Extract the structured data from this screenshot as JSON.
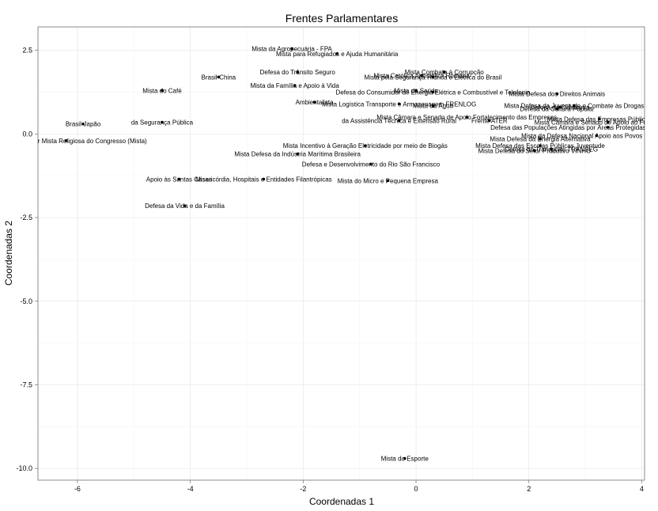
{
  "chart_data": {
    "type": "scatter",
    "title": "Frentes Parlamentares",
    "xlabel": "Coordenadas 1",
    "ylabel": "Coordenadas 2",
    "xlim": [
      -6.7,
      4.05
    ],
    "ylim": [
      -10.35,
      3.2
    ],
    "xticks": [
      -6,
      -4,
      -2,
      0,
      2,
      4
    ],
    "yticks": [
      2.5,
      0.0,
      -2.5,
      -5.0,
      -7.5,
      -10.0
    ],
    "ytick_labels": [
      "2.5",
      "0.0",
      "-2.5",
      "-5.0",
      "-7.5",
      "-10.0"
    ],
    "grid": true,
    "points": [
      {
        "x": -2.2,
        "y": 2.55,
        "label": "Mista da Agropecuária - FPA"
      },
      {
        "x": -1.4,
        "y": 2.4,
        "label": "Mista para Refugiados e Ajuda  Humanitária"
      },
      {
        "x": -3.5,
        "y": 1.7,
        "label": "Brasil-China"
      },
      {
        "x": -2.1,
        "y": 1.85,
        "label": "Defesa do Trânsito Seguro"
      },
      {
        "x": -2.15,
        "y": 1.45,
        "label": "Mista da Família e Apoio à Vida"
      },
      {
        "x": -4.5,
        "y": 1.3,
        "label": "Mista do Café"
      },
      {
        "x": 0.5,
        "y": 1.85,
        "label": "Mista  Combate à Corrupção"
      },
      {
        "x": 0.1,
        "y": 1.75,
        "label": "Mista Católica Apostólica Romana"
      },
      {
        "x": 0.3,
        "y": 1.7,
        "label": "Mista pela Segurança Hídrica e Elétrica do Brasil"
      },
      {
        "x": 0.0,
        "y": 1.3,
        "label": "Mista da Saúde"
      },
      {
        "x": 0.3,
        "y": 1.25,
        "label": "Defesa do Consumidor de Energia Elétrica e Combustível e Telefonia"
      },
      {
        "x": 2.5,
        "y": 1.2,
        "label": "Mista  Defesa dos Direitos Animais"
      },
      {
        "x": -1.8,
        "y": 0.95,
        "label": "Ambientalista"
      },
      {
        "x": -0.3,
        "y": 0.9,
        "label": "Mista  Logística  Transporte e Armazenagem  FRENLOG"
      },
      {
        "x": 0.3,
        "y": 0.85,
        "label": "Mista da Água"
      },
      {
        "x": 2.8,
        "y": 0.85,
        "label": "Mista  Defesa da Juventude e Combate às Drogas"
      },
      {
        "x": 2.5,
        "y": 0.75,
        "label": "Defesa da Cultura Popular"
      },
      {
        "x": 2.55,
        "y": 0.8,
        "label": "Defesa da Cidadania"
      },
      {
        "x": 0.9,
        "y": 0.5,
        "label": "Mista  Câmara e Senado  de Apoio Fortalecimento das Empresas"
      },
      {
        "x": 3.25,
        "y": 0.45,
        "label": "Mista  Defesa das Empresas Públicas"
      },
      {
        "x": -0.3,
        "y": 0.4,
        "label": "da Assistência Técnica e Extensão Rural"
      },
      {
        "x": 1.3,
        "y": 0.4,
        "label": "Frente ATER"
      },
      {
        "x": 3.4,
        "y": 0.35,
        "label": "Mista  Câmara e Senado  de Apoio ao Fortalecimento"
      },
      {
        "x": 3.4,
        "y": 0.2,
        "label": "Defesa das Populações Atingidas por Áreas Protegidas (unidades de Conservação)"
      },
      {
        "x": 3.2,
        "y": -0.05,
        "label": "Mista da Defesa Nacional Apoio aos Povos Indígenas"
      },
      {
        "x": 2.2,
        "y": -0.15,
        "label": "Mista  Defesa da Energia Alternativa"
      },
      {
        "x": -6.2,
        "y": -0.2,
        "label": "Frente Parlamentar Mista Religiosa do Congresso (Mista)"
      },
      {
        "x": -5.9,
        "y": 0.3,
        "label": "Brasil-Japão"
      },
      {
        "x": -4.5,
        "y": 0.35,
        "label": "da Segurança Pública"
      },
      {
        "x": -0.9,
        "y": -0.35,
        "label": "Mista  Incentivo à Geração  Eletricidade por meio de Biogás"
      },
      {
        "x": 2.2,
        "y": -0.35,
        "label": "Mista  Defesa das Escolas Públicas  Juventude"
      },
      {
        "x": 2.4,
        "y": -0.45,
        "label": "Defesa do Transporte  TRANSEG"
      },
      {
        "x": 2.1,
        "y": -0.5,
        "label": "Mista  Defesa do Setor Produtivo  VINHO"
      },
      {
        "x": -2.1,
        "y": -0.6,
        "label": "Mista  Defesa da Indústria Marítima Brasileira"
      },
      {
        "x": -0.8,
        "y": -0.9,
        "label": "Defesa e Desenvolvimento do Rio São Francisco"
      },
      {
        "x": -2.7,
        "y": -1.35,
        "label": "Misericórdia, Hospitais e Entidades Filantrópicas"
      },
      {
        "x": -4.2,
        "y": -1.35,
        "label": "Apoio às Santas Casas"
      },
      {
        "x": -0.5,
        "y": -1.4,
        "label": "Mista do Micro e Pequena Empresa"
      },
      {
        "x": -4.1,
        "y": -2.15,
        "label": "Defesa da Vida e da Família"
      },
      {
        "x": -0.2,
        "y": -9.7,
        "label": "Mista do Esporte"
      }
    ]
  }
}
